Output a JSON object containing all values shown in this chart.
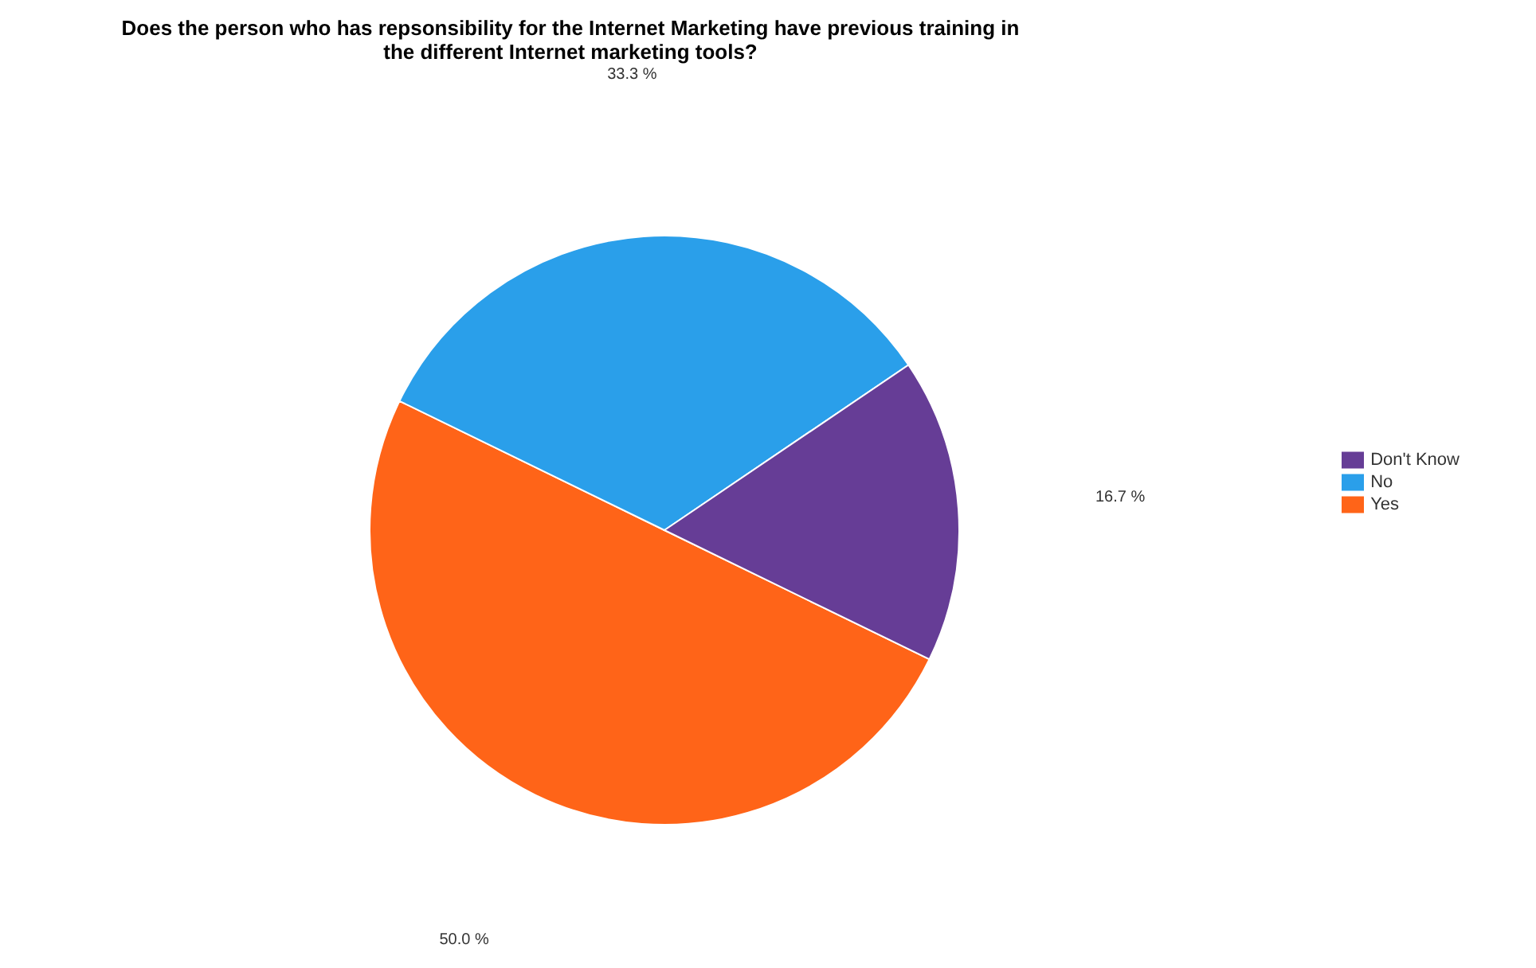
{
  "chart_data": {
    "type": "pie",
    "title": "Does the person who has repsonsibility for the Internet Marketing have previous training in the different Internet marketing tools?",
    "categories": [
      "Yes",
      "No",
      "Don't Know"
    ],
    "values": [
      50.0,
      33.3,
      16.7
    ],
    "colors": [
      "#ff6418",
      "#2a9fea",
      "#663d96"
    ],
    "value_labels": [
      "50.0 %",
      "33.3 %",
      "16.7 %"
    ],
    "legend": "right"
  }
}
